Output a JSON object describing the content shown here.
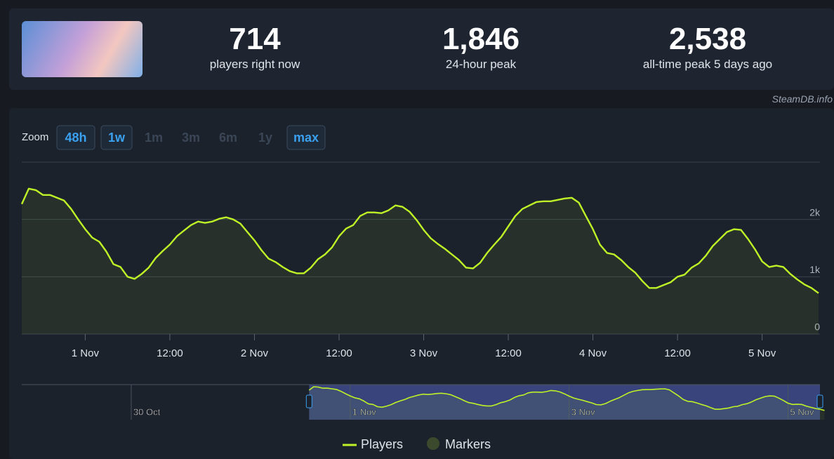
{
  "header": {
    "stats": [
      {
        "value": "714",
        "label": "players right now"
      },
      {
        "value": "1,846",
        "label": "24-hour peak"
      },
      {
        "value": "2,538",
        "label": "all-time peak 5 days ago"
      }
    ],
    "watermark": "SteamDB.info"
  },
  "zoom": {
    "label": "Zoom",
    "buttons": [
      {
        "label": "48h",
        "enabled": true
      },
      {
        "label": "1w",
        "enabled": true
      },
      {
        "label": "1m",
        "enabled": false
      },
      {
        "label": "3m",
        "enabled": false
      },
      {
        "label": "6m",
        "enabled": false
      },
      {
        "label": "1y",
        "enabled": false
      },
      {
        "label": "max",
        "enabled": true
      }
    ]
  },
  "chart_data": {
    "type": "line",
    "x": [
      -9,
      -8,
      -7,
      -6,
      -5,
      -4,
      -3,
      -2,
      -1,
      0,
      1,
      2,
      3,
      4,
      5,
      6,
      7,
      8,
      9,
      10,
      11,
      12,
      13,
      14,
      15,
      16,
      17,
      18,
      19,
      20,
      21,
      22,
      23,
      24,
      25,
      26,
      27,
      28,
      29,
      30,
      31,
      32,
      33,
      34,
      35,
      36,
      37,
      38,
      39,
      40,
      41,
      42,
      43,
      44,
      45,
      46,
      47,
      48,
      49,
      50,
      51,
      52,
      53,
      54,
      55,
      56,
      57,
      58,
      59,
      60,
      61,
      62,
      63,
      64,
      65,
      66,
      67,
      68,
      69,
      70,
      71,
      72,
      73,
      74,
      75,
      76,
      77,
      78,
      79,
      80,
      81,
      82,
      83,
      84,
      85,
      86,
      87,
      88,
      89,
      90,
      91,
      92,
      93,
      94,
      95,
      96,
      97,
      98,
      99,
      100,
      101,
      102,
      103,
      104
    ],
    "series": [
      {
        "name": "Players",
        "color": "#bef227",
        "values": [
          2268,
          2537,
          2512,
          2427,
          2427,
          2378,
          2329,
          2183,
          2000,
          1829,
          1683,
          1610,
          1439,
          1220,
          1171,
          1000,
          963,
          1049,
          1159,
          1329,
          1451,
          1561,
          1707,
          1805,
          1902,
          1963,
          1939,
          1963,
          2012,
          2037,
          2000,
          1927,
          1780,
          1634,
          1463,
          1317,
          1256,
          1171,
          1098,
          1061,
          1061,
          1159,
          1305,
          1390,
          1512,
          1707,
          1841,
          1902,
          2061,
          2122,
          2122,
          2110,
          2159,
          2244,
          2220,
          2134,
          1988,
          1817,
          1671,
          1573,
          1488,
          1390,
          1293,
          1159,
          1146,
          1244,
          1415,
          1561,
          1695,
          1878,
          2061,
          2183,
          2244,
          2305,
          2317,
          2317,
          2341,
          2366,
          2378,
          2293,
          2061,
          1829,
          1561,
          1415,
          1390,
          1293,
          1171,
          1073,
          927,
          805,
          805,
          854,
          902,
          1000,
          1037,
          1159,
          1232,
          1366,
          1537,
          1659,
          1780,
          1829,
          1817,
          1659,
          1476,
          1268,
          1171,
          1195,
          1171,
          1049,
          951,
          866,
          805,
          714
        ]
      }
    ],
    "markers": {
      "name": "Markers",
      "color": "#3b4a2c"
    },
    "xlim": [
      -9,
      104.2
    ],
    "xticks": [
      {
        "value": 0,
        "label": "1 Nov"
      },
      {
        "value": 12,
        "label": "12:00"
      },
      {
        "value": 24,
        "label": "2 Nov"
      },
      {
        "value": 36,
        "label": "12:00"
      },
      {
        "value": 48,
        "label": "3 Nov"
      },
      {
        "value": 60,
        "label": "12:00"
      },
      {
        "value": 72,
        "label": "4 Nov"
      },
      {
        "value": 84,
        "label": "12:00"
      },
      {
        "value": 96,
        "label": "5 Nov"
      }
    ],
    "ylim": [
      0,
      3000
    ],
    "yticks": [
      0,
      {
        "value": 1000,
        "label": "1k"
      },
      {
        "value": 2000,
        "label": "2k"
      }
    ],
    "grid": true,
    "navigator": {
      "xlim": [
        -72,
        103
      ],
      "ylim": [
        0,
        2700
      ],
      "xticks": [
        {
          "value": -48,
          "label": "30 Oct"
        },
        {
          "value": 0,
          "label": "1 Nov"
        },
        {
          "value": 48,
          "label": "3 Nov"
        },
        {
          "value": 96,
          "label": "5 Nov"
        }
      ]
    }
  }
}
